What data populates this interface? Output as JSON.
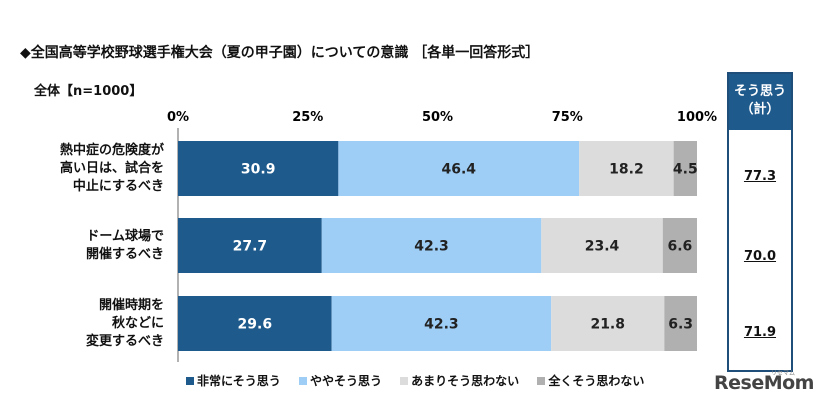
{
  "title": "◆全国高等学校野球選手権大会（夏の甲子園）についての意識 ［各単一回答形式］",
  "subtitle": "全体【n=1000】",
  "summary_header": [
    "そう思う",
    "（計）"
  ],
  "logo_text": "ReseMom",
  "logo_mark": "リセマム",
  "colors": {
    "strongly_agree": "#1e5a8c",
    "somewhat_agree": "#9ecdf6",
    "not_really_agree": "#dcdcdc",
    "not_agree_at_all": "#b0b0b0",
    "summary_border": "#1e4e79"
  },
  "chart_data": {
    "type": "bar",
    "stacked": true,
    "orientation": "horizontal",
    "xlim": [
      0,
      100
    ],
    "x_ticks": [
      "0%",
      "25%",
      "50%",
      "75%",
      "100%"
    ],
    "grid": false,
    "legend_position": "bottom",
    "categories": [
      [
        "熱中症の危険度が",
        "高い日は、試合を",
        "中止にするべき"
      ],
      [
        "ドーム球場で",
        "開催するべき"
      ],
      [
        "開催時期を",
        "秋などに",
        "変更するべき"
      ]
    ],
    "series": [
      {
        "name": "非常にそう思う",
        "values": [
          30.9,
          27.7,
          29.6
        ]
      },
      {
        "name": "ややそう思う",
        "values": [
          46.4,
          42.3,
          42.3
        ]
      },
      {
        "name": "あまりそう思わない",
        "values": [
          18.2,
          23.4,
          21.8
        ]
      },
      {
        "name": "全くそう思わない",
        "values": [
          4.5,
          6.6,
          6.3
        ]
      }
    ],
    "agree_total": [
      "77.3",
      "70.0",
      "71.9"
    ]
  }
}
